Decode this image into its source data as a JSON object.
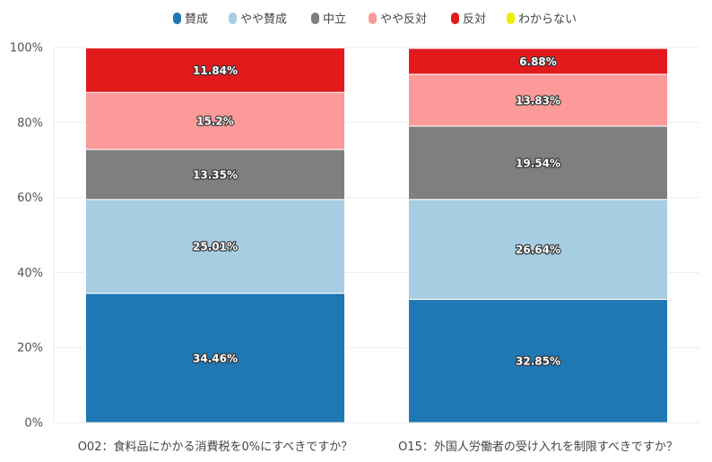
{
  "chart_data": {
    "type": "bar",
    "stacked": true,
    "categories": [
      "O02：食料品にかかる消費税を0%にすべきですか？",
      "O15：外国人労働者の受け入れを制限すべきですか？"
    ],
    "series": [
      {
        "name": "賛成",
        "color": "#1f77b4",
        "values": [
          34.46,
          32.85
        ],
        "labels": [
          "34.46%",
          "32.85%"
        ]
      },
      {
        "name": "やや賛成",
        "color": "#a6cde2",
        "values": [
          25.01,
          26.64
        ],
        "labels": [
          "25.01%",
          "26.64%"
        ]
      },
      {
        "name": "中立",
        "color": "#7f7f7f",
        "values": [
          13.35,
          19.54
        ],
        "labels": [
          "13.35%",
          "19.54%"
        ]
      },
      {
        "name": "やや反対",
        "color": "#fb9a99",
        "values": [
          15.2,
          13.83
        ],
        "labels": [
          "15.2%",
          "13.83%"
        ]
      },
      {
        "name": "反対",
        "color": "#e31a1c",
        "values": [
          11.84,
          6.88
        ],
        "labels": [
          "11.84%",
          "6.88%"
        ]
      },
      {
        "name": "わからない",
        "color": "#ecec00",
        "values": [
          0,
          0
        ],
        "labels": [
          "",
          ""
        ]
      }
    ],
    "yticks": [
      "0%",
      "20%",
      "40%",
      "60%",
      "80%",
      "100%"
    ],
    "ylim": [
      0,
      100
    ],
    "grid": true,
    "legend": "top-center"
  }
}
